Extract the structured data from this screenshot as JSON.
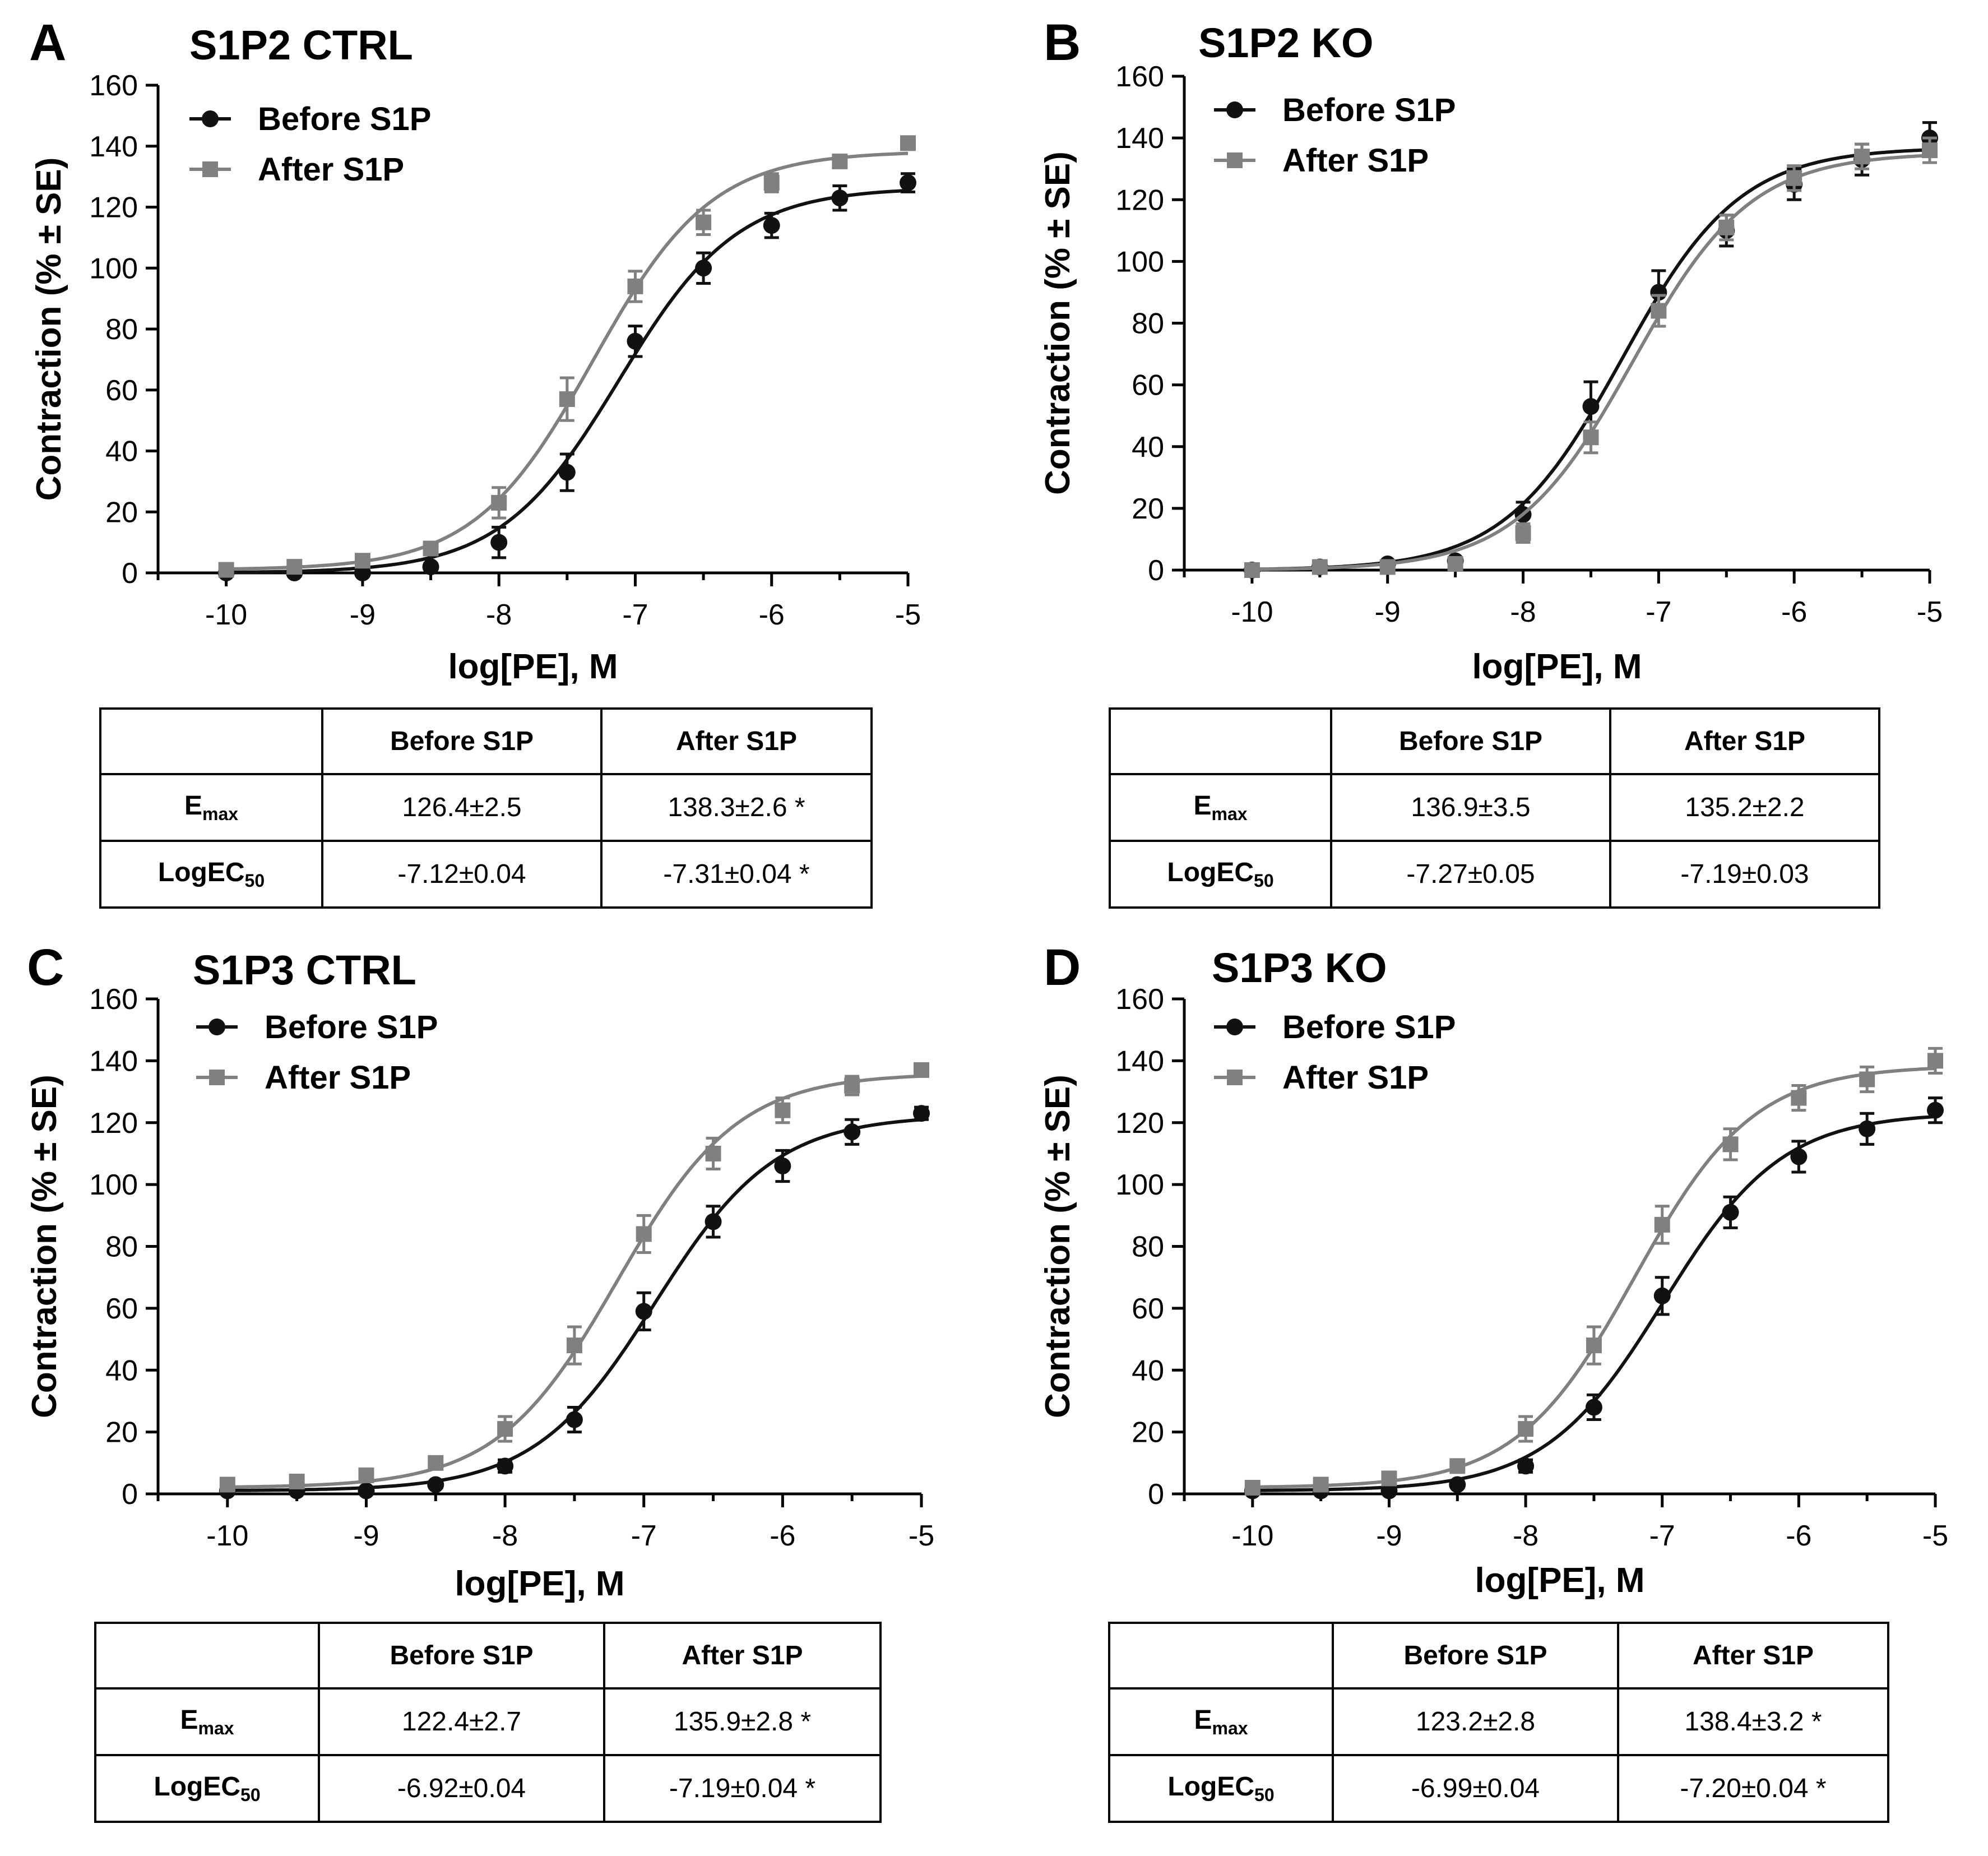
{
  "chart_data": [
    {
      "type": "scatter",
      "letter": "A",
      "title": "S1P2 CTRL",
      "xlabel": "log[PE], M",
      "ylabel": "Contraction (% ± SE)",
      "xlim": [
        -10.5,
        -5
      ],
      "ylim": [
        0,
        160
      ],
      "xticks": [
        "-10",
        "-9",
        "-8",
        "-7",
        "-6",
        "-5"
      ],
      "yticks": [
        "0",
        "20",
        "40",
        "60",
        "80",
        "100",
        "120",
        "140",
        "160"
      ],
      "legend": "top-left",
      "x": [
        -10,
        -9.5,
        -9,
        -8.5,
        -8,
        -7.5,
        -7,
        -6.5,
        -6,
        -5.5,
        -5
      ],
      "series": [
        {
          "name": "Before S1P",
          "color": "#111111",
          "marker": "circle",
          "values": [
            0,
            0,
            0,
            2,
            10,
            33,
            76,
            100,
            114,
            123,
            128
          ],
          "errors": [
            1,
            1,
            1,
            1,
            5,
            6,
            5,
            5,
            4,
            4,
            3
          ],
          "fit": {
            "bottom": 0,
            "top": 126.4,
            "logec50": -7.12
          }
        },
        {
          "name": "After S1P",
          "color": "#808080",
          "marker": "square",
          "values": [
            1,
            2,
            4,
            8,
            23,
            57,
            94,
            115,
            128,
            135,
            141
          ],
          "errors": [
            2,
            2,
            2,
            2,
            5,
            7,
            5,
            4,
            3,
            2,
            2
          ],
          "fit": {
            "bottom": 1,
            "top": 138.3,
            "logec50": -7.31
          }
        }
      ],
      "table": {
        "headers": [
          "",
          "Before S1P",
          "After S1P"
        ],
        "rows": [
          {
            "label": "E",
            "sub": "max",
            "before": "126.4±2.5",
            "after": "138.3±2.6 *"
          },
          {
            "label": "LogEC",
            "sub": "50",
            "before": "-7.12±0.04",
            "after": "-7.31±0.04 *"
          }
        ]
      }
    },
    {
      "type": "scatter",
      "letter": "B",
      "title": "S1P2 KO",
      "xlabel": "log[PE], M",
      "ylabel": "Contraction (% ± SE)",
      "xlim": [
        -10.5,
        -5
      ],
      "ylim": [
        0,
        160
      ],
      "xticks": [
        "-10",
        "-9",
        "-8",
        "-7",
        "-6",
        "-5"
      ],
      "yticks": [
        "0",
        "20",
        "40",
        "60",
        "80",
        "100",
        "120",
        "140",
        "160"
      ],
      "legend": "top-left",
      "x": [
        -10,
        -9.5,
        -9,
        -8.5,
        -8,
        -7.5,
        -7,
        -6.5,
        -6,
        -5.5,
        -5
      ],
      "series": [
        {
          "name": "Before S1P",
          "color": "#111111",
          "marker": "circle",
          "values": [
            0,
            1,
            2,
            3,
            18,
            53,
            90,
            110,
            125,
            133,
            140
          ],
          "errors": [
            1,
            1,
            1,
            1,
            4,
            8,
            7,
            5,
            5,
            5,
            5
          ],
          "fit": {
            "bottom": 0,
            "top": 136.9,
            "logec50": -7.27
          }
        },
        {
          "name": "After S1P",
          "color": "#808080",
          "marker": "square",
          "values": [
            0,
            1,
            1,
            2,
            12,
            43,
            84,
            111,
            127,
            134,
            136
          ],
          "errors": [
            1,
            1,
            1,
            1,
            3,
            5,
            5,
            4,
            4,
            4,
            4
          ],
          "fit": {
            "bottom": 0,
            "top": 135.2,
            "logec50": -7.19
          }
        }
      ],
      "table": {
        "headers": [
          "",
          "Before S1P",
          "After S1P"
        ],
        "rows": [
          {
            "label": "E",
            "sub": "max",
            "before": "136.9±3.5",
            "after": "135.2±2.2"
          },
          {
            "label": "LogEC",
            "sub": "50",
            "before": "-7.27±0.05",
            "after": "-7.19±0.03"
          }
        ]
      }
    },
    {
      "type": "scatter",
      "letter": "C",
      "title": "S1P3 CTRL",
      "xlabel": "log[PE], M",
      "ylabel": "Contraction (% ± SE)",
      "xlim": [
        -10.5,
        -5
      ],
      "ylim": [
        0,
        160
      ],
      "xticks": [
        "-10",
        "-9",
        "-8",
        "-7",
        "-6",
        "-5"
      ],
      "yticks": [
        "0",
        "20",
        "40",
        "60",
        "80",
        "100",
        "120",
        "140",
        "160"
      ],
      "legend": "top-left",
      "x": [
        -10,
        -9.5,
        -9,
        -8.5,
        -8,
        -7.5,
        -7,
        -6.5,
        -6,
        -5.5,
        -5
      ],
      "series": [
        {
          "name": "Before S1P",
          "color": "#111111",
          "marker": "circle",
          "values": [
            1,
            1,
            1,
            3,
            9,
            24,
            59,
            88,
            106,
            117,
            123
          ],
          "errors": [
            1,
            1,
            1,
            1,
            2,
            4,
            6,
            5,
            5,
            4,
            2
          ],
          "fit": {
            "bottom": 1,
            "top": 122.4,
            "logec50": -6.92
          }
        },
        {
          "name": "After S1P",
          "color": "#808080",
          "marker": "square",
          "values": [
            3,
            4,
            6,
            10,
            21,
            48,
            84,
            110,
            124,
            132,
            137
          ],
          "errors": [
            2,
            2,
            2,
            2,
            4,
            6,
            6,
            5,
            4,
            3,
            2
          ],
          "fit": {
            "bottom": 2,
            "top": 135.9,
            "logec50": -7.19
          }
        }
      ],
      "table": {
        "headers": [
          "",
          "Before S1P",
          "After S1P"
        ],
        "rows": [
          {
            "label": "E",
            "sub": "max",
            "before": "122.4±2.7",
            "after": "135.9±2.8 *"
          },
          {
            "label": "LogEC",
            "sub": "50",
            "before": "-6.92±0.04",
            "after": "-7.19±0.04 *"
          }
        ]
      }
    },
    {
      "type": "scatter",
      "letter": "D",
      "title": "S1P3 KO",
      "xlabel": "log[PE], M",
      "ylabel": "Contraction (% ± SE)",
      "xlim": [
        -10.5,
        -5
      ],
      "ylim": [
        0,
        160
      ],
      "xticks": [
        "-10",
        "-9",
        "-8",
        "-7",
        "-6",
        "-5"
      ],
      "yticks": [
        "0",
        "20",
        "40",
        "60",
        "80",
        "100",
        "120",
        "140",
        "160"
      ],
      "legend": "top-left",
      "x": [
        -10,
        -9.5,
        -9,
        -8.5,
        -8,
        -7.5,
        -7,
        -6.5,
        -6,
        -5.5,
        -5
      ],
      "series": [
        {
          "name": "Before S1P",
          "color": "#111111",
          "marker": "circle",
          "values": [
            1,
            1,
            1,
            3,
            9,
            28,
            64,
            91,
            109,
            118,
            124
          ],
          "errors": [
            1,
            1,
            1,
            1,
            2,
            4,
            6,
            5,
            5,
            5,
            4
          ],
          "fit": {
            "bottom": 1,
            "top": 123.2,
            "logec50": -6.99
          }
        },
        {
          "name": "After S1P",
          "color": "#808080",
          "marker": "square",
          "values": [
            2,
            3,
            5,
            9,
            21,
            48,
            87,
            113,
            128,
            134,
            140
          ],
          "errors": [
            2,
            2,
            2,
            2,
            4,
            6,
            6,
            5,
            4,
            4,
            4
          ],
          "fit": {
            "bottom": 2,
            "top": 138.4,
            "logec50": -7.2
          }
        }
      ],
      "table": {
        "headers": [
          "",
          "Before S1P",
          "After S1P"
        ],
        "rows": [
          {
            "label": "E",
            "sub": "max",
            "before": "123.2±2.8",
            "after": "138.4±3.2 *"
          },
          {
            "label": "LogEC",
            "sub": "50",
            "before": "-6.99±0.04",
            "after": "-7.20±0.04 *"
          }
        ]
      }
    }
  ]
}
